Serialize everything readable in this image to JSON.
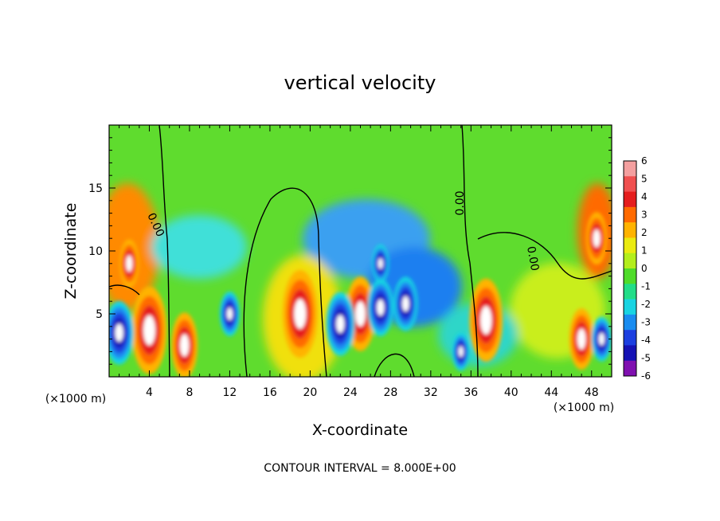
{
  "chart_data": {
    "type": "heatmap",
    "title": "vertical velocity",
    "xlabel": "X-coordinate",
    "ylabel": "Z-coordinate",
    "x_unit": "(×1000 m)",
    "y_unit": "(×1000 m)",
    "xlim": [
      0,
      50
    ],
    "ylim": [
      0,
      20
    ],
    "xticks": [
      4,
      8,
      12,
      16,
      20,
      24,
      28,
      32,
      36,
      40,
      44,
      48
    ],
    "yticks": [
      5,
      10,
      15
    ],
    "colorbar": {
      "ticks": [
        6,
        5,
        4,
        3,
        2,
        1,
        0,
        -1,
        -2,
        -3,
        -4,
        -5,
        -6
      ],
      "colors": [
        "#f4a0a0",
        "#f05050",
        "#e51d1d",
        "#ff6a00",
        "#ffb300",
        "#eaea10",
        "#b3ee1c",
        "#4fdc2a",
        "#22dd88",
        "#19d4e2",
        "#1a8cf0",
        "#1c3fe0",
        "#1512b4",
        "#8010b0"
      ]
    },
    "contour_label": "0.00",
    "contour_interval": "CONTOUR INTERVAL = 8.000E+00",
    "updrafts": [
      {
        "x": 4.0,
        "z": 3.7,
        "strength": 1.0
      },
      {
        "x": 7.5,
        "z": 2.5,
        "strength": 0.75
      },
      {
        "x": 19.0,
        "z": 5.0,
        "strength": 1.0
      },
      {
        "x": 25.0,
        "z": 5.0,
        "strength": 0.85
      },
      {
        "x": 37.5,
        "z": 4.5,
        "strength": 0.95
      },
      {
        "x": 47.0,
        "z": 3.0,
        "strength": 0.7
      },
      {
        "x": 2.0,
        "z": 9.0,
        "strength": 0.55
      },
      {
        "x": 48.5,
        "z": 11.0,
        "strength": 0.6
      }
    ],
    "downdrafts": [
      {
        "x": 1.0,
        "z": 3.5,
        "strength": 1.0
      },
      {
        "x": 23.0,
        "z": 4.2,
        "strength": 1.0
      },
      {
        "x": 27.0,
        "z": 5.5,
        "strength": 0.9
      },
      {
        "x": 29.5,
        "z": 5.8,
        "strength": 0.85
      },
      {
        "x": 12.0,
        "z": 5.0,
        "strength": 0.7
      },
      {
        "x": 27.0,
        "z": 9.0,
        "strength": 0.6
      },
      {
        "x": 35.0,
        "z": 2.0,
        "strength": 0.6
      },
      {
        "x": 49.0,
        "z": 3.0,
        "strength": 0.7
      }
    ]
  }
}
